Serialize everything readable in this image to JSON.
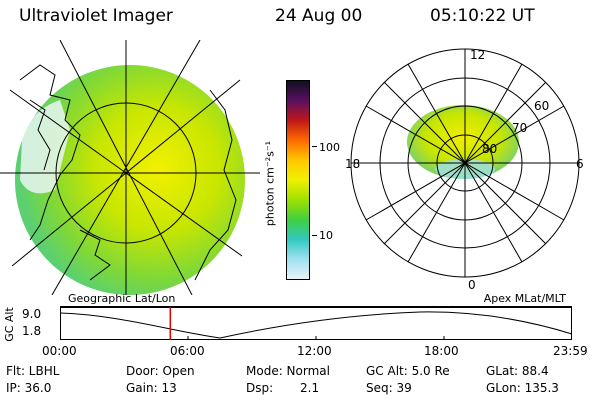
{
  "header": {
    "instrument": "Ultraviolet Imager",
    "date": "24 Aug 00",
    "time": "05:10:22 UT"
  },
  "colorbar": {
    "label": "photon cm⁻²s⁻¹",
    "ticks": [
      "100",
      "10"
    ],
    "colors": [
      "#101020",
      "#5a1060",
      "#c01818",
      "#ff6a00",
      "#ffc800",
      "#f0f000",
      "#a0e000",
      "#40d040",
      "#30c8c0",
      "#a0e0f0",
      "#e8f4f8"
    ]
  },
  "polar": {
    "labels": {
      "top": "12",
      "left": "18",
      "right": "6",
      "bottom": "0"
    },
    "lat_labels": [
      "60",
      "70",
      "80"
    ]
  },
  "timeline": {
    "ylabel": "GC Alt",
    "ymax": "9.0",
    "ymin": "1.8",
    "left_title": "Geographic Lat/Lon",
    "right_title": "Apex MLat/MLT",
    "times": [
      "00:00",
      "06:00",
      "12:00",
      "18:00",
      "23:59"
    ],
    "current_fraction": 0.2155
  },
  "info": {
    "filter": "Flt: LBHL",
    "ip": "IP: 36.0",
    "door": "Door: Open",
    "gain": "Gain: 13",
    "mode": "Mode: Normal",
    "dsp_label": "Dsp:",
    "dsp_value": "2.1",
    "gc_alt": "GC Alt: 5.0 Re",
    "seq": "Seq: 39",
    "glat": "GLat: 88.4",
    "glon": "GLon: 135.3"
  }
}
